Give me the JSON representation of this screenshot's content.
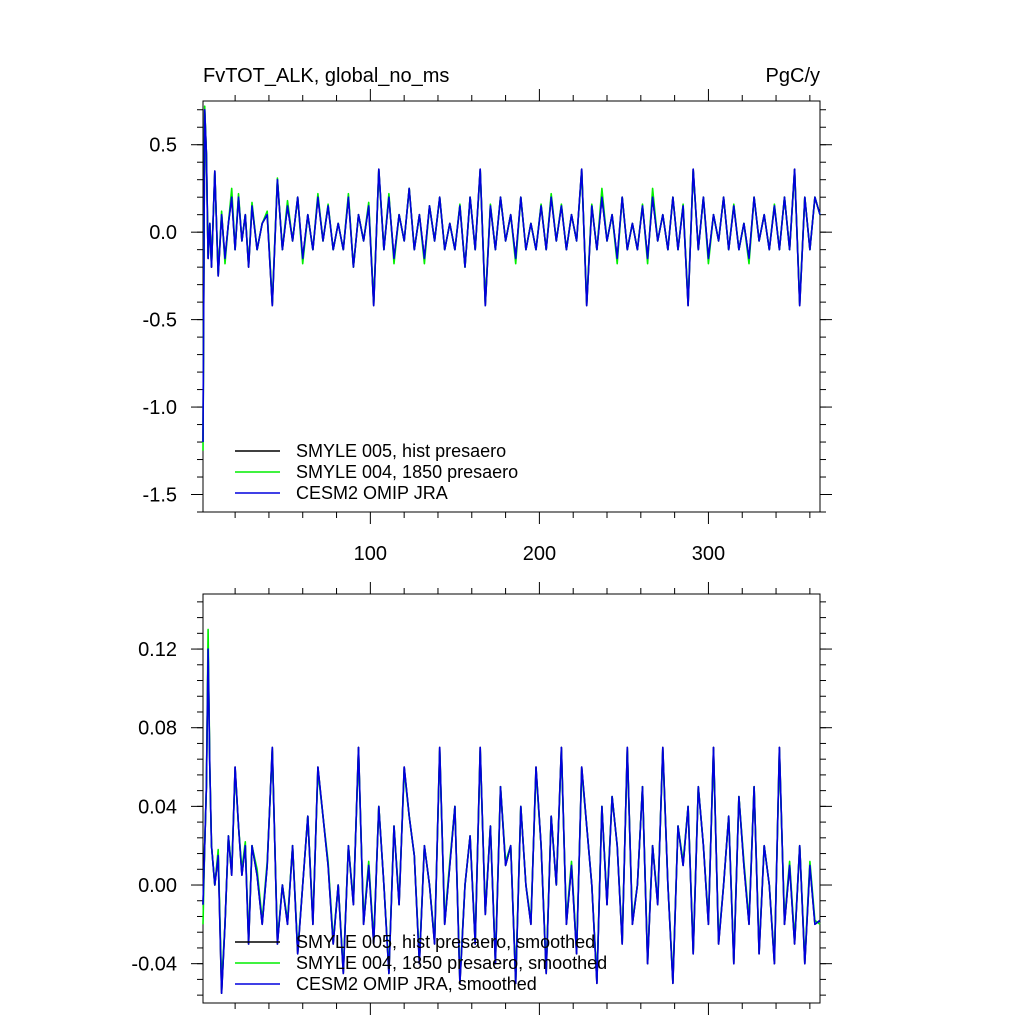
{
  "figure": {
    "title_left": "FvTOT_ALK, global_no_ms",
    "title_right": "PgC/y"
  },
  "colors": {
    "SMYLE 005": "#000000",
    "SMYLE 004": "#00ee00",
    "CESM2 OMIP JRA": "#0000dd"
  },
  "chart_data": [
    {
      "type": "line",
      "title": "FvTOT_ALK, global_no_ms",
      "units": "PgC/y",
      "xlim": [
        1,
        366
      ],
      "ylim": [
        -1.6,
        0.75
      ],
      "yticks": [
        0.5,
        0.0,
        -0.5,
        -1.0,
        -1.5
      ],
      "ytick_labels": [
        "0.5",
        "0.0",
        "-0.5",
        "-1.0",
        "-1.5"
      ],
      "xticks": [
        100,
        200,
        300
      ],
      "xtick_labels": [
        "100",
        "200",
        "300"
      ],
      "grid": false,
      "legend_position": "bottom-left",
      "x": [
        1,
        2,
        3,
        4,
        5,
        6,
        8,
        10,
        12,
        14,
        16,
        18,
        20,
        22,
        24,
        26,
        28,
        30,
        33,
        36,
        39,
        42,
        45,
        48,
        51,
        54,
        57,
        60,
        63,
        66,
        69,
        72,
        75,
        78,
        81,
        84,
        87,
        90,
        93,
        96,
        99,
        102,
        105,
        108,
        111,
        114,
        117,
        120,
        123,
        126,
        129,
        132,
        135,
        138,
        141,
        144,
        147,
        150,
        153,
        156,
        159,
        162,
        165,
        168,
        171,
        174,
        177,
        180,
        183,
        186,
        189,
        192,
        195,
        198,
        201,
        204,
        207,
        210,
        213,
        216,
        219,
        222,
        225,
        228,
        231,
        234,
        237,
        240,
        243,
        246,
        249,
        252,
        255,
        258,
        261,
        264,
        267,
        270,
        273,
        276,
        279,
        282,
        285,
        288,
        291,
        294,
        297,
        300,
        303,
        306,
        309,
        312,
        315,
        318,
        321,
        324,
        327,
        330,
        333,
        336,
        339,
        342,
        345,
        348,
        351,
        354,
        357,
        360,
        363,
        366
      ],
      "series": [
        {
          "name": "SMYLE 005, hist presaero",
          "values": [
            -1.2,
            0.7,
            0.45,
            -0.15,
            0.05,
            -0.2,
            0.35,
            -0.25,
            0.1,
            -0.15,
            0.05,
            0.2,
            -0.1,
            0.2,
            -0.05,
            0.1,
            -0.2,
            0.15,
            -0.1,
            0.05,
            0.1,
            -0.42,
            0.3,
            -0.1,
            0.15,
            -0.05,
            0.2,
            -0.15,
            0.1,
            -0.1,
            0.2,
            -0.05,
            0.15,
            -0.1,
            0.05,
            -0.1,
            0.2,
            -0.2,
            0.1,
            -0.05,
            0.15,
            -0.42,
            0.36,
            -0.1,
            0.2,
            -0.15,
            0.1,
            -0.05,
            0.25,
            -0.1,
            0.1,
            -0.15,
            0.15,
            -0.05,
            0.2,
            -0.1,
            0.05,
            -0.1,
            0.15,
            -0.2,
            0.2,
            -0.1,
            0.36,
            -0.42,
            0.15,
            -0.1,
            0.2,
            -0.05,
            0.1,
            -0.15,
            0.2,
            -0.1,
            0.05,
            -0.1,
            0.15,
            -0.1,
            0.2,
            -0.05,
            0.15,
            -0.1,
            0.1,
            -0.05,
            0.36,
            -0.42,
            0.15,
            -0.1,
            0.2,
            -0.05,
            0.1,
            -0.15,
            0.2,
            -0.1,
            0.05,
            -0.1,
            0.15,
            -0.15,
            0.2,
            -0.05,
            0.1,
            -0.1,
            0.2,
            -0.1,
            0.15,
            -0.42,
            0.36,
            -0.1,
            0.2,
            -0.15,
            0.1,
            -0.05,
            0.2,
            -0.1,
            0.15,
            -0.1,
            0.05,
            -0.15,
            0.2,
            -0.05,
            0.1,
            -0.1,
            0.15,
            -0.1,
            0.2,
            -0.1,
            0.36,
            -0.42,
            0.2,
            -0.1,
            0.2,
            0.1
          ]
        },
        {
          "name": "SMYLE 004, 1850 presaero",
          "values": [
            -1.25,
            0.72,
            0.44,
            -0.14,
            0.05,
            -0.19,
            0.34,
            -0.24,
            0.12,
            -0.18,
            0.05,
            0.25,
            -0.1,
            0.22,
            -0.05,
            0.1,
            -0.19,
            0.17,
            -0.1,
            0.05,
            0.12,
            -0.4,
            0.31,
            -0.1,
            0.18,
            -0.05,
            0.2,
            -0.18,
            0.1,
            -0.1,
            0.22,
            -0.05,
            0.16,
            -0.1,
            0.05,
            -0.1,
            0.22,
            -0.2,
            0.1,
            -0.05,
            0.17,
            -0.4,
            0.35,
            -0.1,
            0.22,
            -0.18,
            0.1,
            -0.05,
            0.25,
            -0.1,
            0.1,
            -0.18,
            0.15,
            -0.05,
            0.2,
            -0.1,
            0.05,
            -0.1,
            0.16,
            -0.2,
            0.2,
            -0.1,
            0.35,
            -0.4,
            0.16,
            -0.1,
            0.2,
            -0.05,
            0.1,
            -0.18,
            0.2,
            -0.1,
            0.05,
            -0.1,
            0.16,
            -0.1,
            0.22,
            -0.05,
            0.16,
            -0.1,
            0.1,
            -0.05,
            0.35,
            -0.4,
            0.16,
            -0.1,
            0.25,
            -0.05,
            0.1,
            -0.18,
            0.2,
            -0.1,
            0.05,
            -0.1,
            0.16,
            -0.18,
            0.25,
            -0.05,
            0.1,
            -0.1,
            0.2,
            -0.1,
            0.16,
            -0.4,
            0.35,
            -0.1,
            0.2,
            -0.18,
            0.1,
            -0.05,
            0.2,
            -0.1,
            0.16,
            -0.1,
            0.05,
            -0.18,
            0.2,
            -0.05,
            0.1,
            -0.1,
            0.16,
            -0.1,
            0.2,
            -0.1,
            0.35,
            -0.4,
            0.2,
            -0.1,
            0.2,
            0.1
          ]
        },
        {
          "name": "CESM2 OMIP JRA",
          "values": [
            -1.2,
            0.7,
            0.45,
            -0.15,
            0.05,
            -0.2,
            0.35,
            -0.25,
            0.1,
            -0.15,
            0.05,
            0.2,
            -0.1,
            0.2,
            -0.05,
            0.1,
            -0.2,
            0.15,
            -0.1,
            0.05,
            0.1,
            -0.42,
            0.3,
            -0.1,
            0.15,
            -0.05,
            0.2,
            -0.15,
            0.1,
            -0.1,
            0.2,
            -0.05,
            0.15,
            -0.1,
            0.05,
            -0.1,
            0.2,
            -0.2,
            0.1,
            -0.05,
            0.15,
            -0.42,
            0.36,
            -0.1,
            0.2,
            -0.15,
            0.1,
            -0.05,
            0.25,
            -0.1,
            0.1,
            -0.15,
            0.15,
            -0.05,
            0.2,
            -0.1,
            0.05,
            -0.1,
            0.15,
            -0.2,
            0.2,
            -0.1,
            0.36,
            -0.42,
            0.15,
            -0.1,
            0.2,
            -0.05,
            0.1,
            -0.15,
            0.2,
            -0.1,
            0.05,
            -0.1,
            0.15,
            -0.1,
            0.2,
            -0.05,
            0.15,
            -0.1,
            0.1,
            -0.05,
            0.36,
            -0.42,
            0.15,
            -0.1,
            0.2,
            -0.05,
            0.1,
            -0.15,
            0.2,
            -0.1,
            0.05,
            -0.1,
            0.15,
            -0.15,
            0.2,
            -0.05,
            0.1,
            -0.1,
            0.2,
            -0.1,
            0.15,
            -0.42,
            0.36,
            -0.1,
            0.2,
            -0.15,
            0.1,
            -0.05,
            0.2,
            -0.1,
            0.15,
            -0.1,
            0.05,
            -0.15,
            0.2,
            -0.05,
            0.1,
            -0.1,
            0.15,
            -0.1,
            0.2,
            -0.1,
            0.36,
            -0.42,
            0.2,
            -0.1,
            0.2,
            0.1
          ]
        }
      ]
    },
    {
      "type": "line",
      "xlim": [
        1,
        366
      ],
      "ylim": [
        -0.06,
        0.148
      ],
      "yticks": [
        0.12,
        0.08,
        0.04,
        0.0,
        -0.04
      ],
      "ytick_labels": [
        "0.12",
        "0.08",
        "0.04",
        "0.00",
        "-0.04"
      ],
      "xticks": [
        100,
        200,
        300
      ],
      "xtick_labels": [
        "",
        "",
        ""
      ],
      "grid": false,
      "legend_position": "bottom-left",
      "x": [
        1,
        2,
        3,
        4,
        5,
        6,
        8,
        10,
        12,
        14,
        16,
        18,
        20,
        22,
        24,
        26,
        28,
        30,
        33,
        36,
        39,
        42,
        45,
        48,
        51,
        54,
        57,
        60,
        63,
        66,
        69,
        72,
        75,
        78,
        81,
        84,
        87,
        90,
        93,
        96,
        99,
        102,
        105,
        108,
        111,
        114,
        117,
        120,
        123,
        126,
        129,
        132,
        135,
        138,
        141,
        144,
        147,
        150,
        153,
        156,
        159,
        162,
        165,
        168,
        171,
        174,
        177,
        180,
        183,
        186,
        189,
        192,
        195,
        198,
        201,
        204,
        207,
        210,
        213,
        216,
        219,
        222,
        225,
        228,
        231,
        234,
        237,
        240,
        243,
        246,
        249,
        252,
        255,
        258,
        261,
        264,
        267,
        270,
        273,
        276,
        279,
        282,
        285,
        288,
        291,
        294,
        297,
        300,
        303,
        306,
        309,
        312,
        315,
        318,
        321,
        324,
        327,
        330,
        333,
        336,
        339,
        342,
        345,
        348,
        351,
        354,
        357,
        360,
        363,
        366
      ],
      "series": [
        {
          "name": "SMYLE 005, hist presaero, smoothed",
          "values": [
            -0.01,
            0.02,
            0.05,
            0.12,
            0.06,
            0.02,
            0.0,
            0.015,
            -0.055,
            -0.02,
            0.025,
            0.005,
            0.06,
            0.03,
            0.005,
            0.02,
            -0.03,
            0.02,
            0.005,
            -0.02,
            0.01,
            0.07,
            -0.03,
            0.0,
            -0.02,
            0.02,
            -0.035,
            0.0,
            0.035,
            -0.02,
            0.06,
            0.035,
            0.01,
            -0.03,
            0.0,
            -0.045,
            0.02,
            -0.01,
            0.07,
            -0.02,
            0.01,
            -0.03,
            0.04,
            0.0,
            -0.045,
            0.03,
            -0.01,
            0.06,
            0.035,
            0.015,
            -0.04,
            0.02,
            0.0,
            -0.03,
            0.07,
            -0.02,
            0.01,
            0.04,
            -0.05,
            0.0,
            0.025,
            -0.03,
            0.07,
            -0.015,
            0.03,
            -0.04,
            0.05,
            0.01,
            0.02,
            -0.05,
            0.04,
            0.0,
            -0.02,
            0.06,
            0.02,
            -0.045,
            0.035,
            0.0,
            0.07,
            -0.02,
            0.01,
            -0.035,
            0.06,
            0.03,
            0.0,
            -0.05,
            0.04,
            -0.01,
            0.045,
            0.02,
            -0.03,
            0.07,
            -0.02,
            0.0,
            0.05,
            -0.04,
            0.02,
            -0.01,
            0.07,
            0.0,
            -0.05,
            0.03,
            0.01,
            0.04,
            -0.035,
            0.05,
            0.02,
            -0.02,
            0.07,
            -0.03,
            0.0,
            0.035,
            -0.04,
            0.045,
            0.01,
            -0.02,
            0.05,
            -0.035,
            0.02,
            0.0,
            -0.04,
            0.07,
            -0.02,
            0.01,
            -0.03,
            0.02,
            -0.04,
            0.01,
            -0.02,
            -0.018
          ]
        },
        {
          "name": "SMYLE 004, 1850 presaero, smoothed",
          "values": [
            -0.02,
            0.02,
            0.05,
            0.13,
            0.06,
            0.02,
            0.0,
            0.018,
            -0.05,
            -0.02,
            0.025,
            0.008,
            0.058,
            0.03,
            0.008,
            0.022,
            -0.028,
            0.02,
            0.008,
            -0.018,
            0.012,
            0.068,
            -0.028,
            0.0,
            -0.018,
            0.02,
            -0.033,
            0.0,
            0.035,
            -0.018,
            0.058,
            0.035,
            0.012,
            -0.028,
            0.0,
            -0.043,
            0.02,
            -0.008,
            0.068,
            -0.018,
            0.012,
            -0.028,
            0.04,
            0.0,
            -0.043,
            0.03,
            -0.008,
            0.058,
            0.035,
            0.015,
            -0.038,
            0.02,
            0.0,
            -0.028,
            0.068,
            -0.018,
            0.012,
            0.04,
            -0.048,
            0.0,
            0.025,
            -0.028,
            0.068,
            -0.013,
            0.03,
            -0.038,
            0.05,
            0.012,
            0.02,
            -0.048,
            0.04,
            0.0,
            -0.018,
            0.058,
            0.02,
            -0.043,
            0.035,
            0.0,
            0.068,
            -0.018,
            0.012,
            -0.033,
            0.058,
            0.03,
            0.0,
            -0.048,
            0.04,
            -0.008,
            0.045,
            0.02,
            -0.028,
            0.068,
            -0.018,
            0.0,
            0.05,
            -0.038,
            0.02,
            -0.008,
            0.068,
            0.0,
            -0.048,
            0.03,
            0.012,
            0.04,
            -0.033,
            0.05,
            0.02,
            -0.018,
            0.068,
            -0.028,
            0.0,
            0.035,
            -0.038,
            0.045,
            0.012,
            -0.018,
            0.05,
            -0.033,
            0.02,
            0.0,
            -0.038,
            0.068,
            -0.018,
            0.012,
            -0.028,
            0.02,
            -0.038,
            0.012,
            -0.018,
            -0.02
          ]
        },
        {
          "name": "CESM2 OMIP JRA, smoothed",
          "values": [
            -0.01,
            0.02,
            0.05,
            0.12,
            0.06,
            0.02,
            0.0,
            0.015,
            -0.055,
            -0.02,
            0.025,
            0.005,
            0.06,
            0.03,
            0.005,
            0.02,
            -0.03,
            0.02,
            0.005,
            -0.02,
            0.01,
            0.07,
            -0.03,
            0.0,
            -0.02,
            0.02,
            -0.035,
            0.0,
            0.035,
            -0.02,
            0.06,
            0.035,
            0.01,
            -0.03,
            0.0,
            -0.045,
            0.02,
            -0.01,
            0.07,
            -0.02,
            0.01,
            -0.03,
            0.04,
            0.0,
            -0.045,
            0.03,
            -0.01,
            0.06,
            0.035,
            0.015,
            -0.04,
            0.02,
            0.0,
            -0.03,
            0.07,
            -0.02,
            0.01,
            0.04,
            -0.05,
            0.0,
            0.025,
            -0.03,
            0.07,
            -0.015,
            0.03,
            -0.04,
            0.05,
            0.01,
            0.02,
            -0.05,
            0.04,
            0.0,
            -0.02,
            0.06,
            0.02,
            -0.045,
            0.035,
            0.0,
            0.07,
            -0.02,
            0.01,
            -0.035,
            0.06,
            0.03,
            0.0,
            -0.05,
            0.04,
            -0.01,
            0.045,
            0.02,
            -0.03,
            0.07,
            -0.02,
            0.0,
            0.05,
            -0.04,
            0.02,
            -0.01,
            0.07,
            0.0,
            -0.05,
            0.03,
            0.01,
            0.04,
            -0.035,
            0.05,
            0.02,
            -0.02,
            0.07,
            -0.03,
            0.0,
            0.035,
            -0.04,
            0.045,
            0.01,
            -0.02,
            0.05,
            -0.035,
            0.02,
            0.0,
            -0.04,
            0.07,
            -0.02,
            0.01,
            -0.03,
            0.02,
            -0.04,
            0.01,
            -0.02,
            -0.018
          ]
        }
      ]
    }
  ]
}
